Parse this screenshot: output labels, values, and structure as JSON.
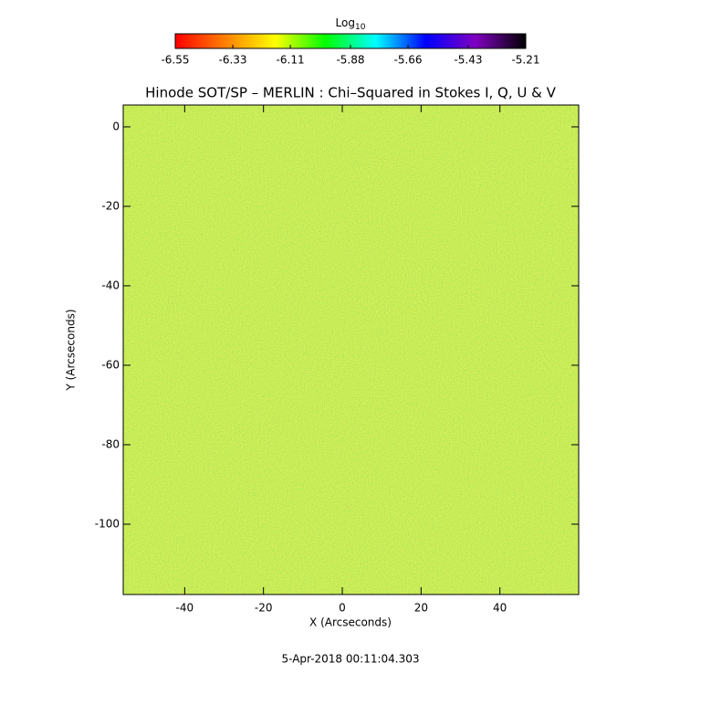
{
  "chart_data": {
    "type": "heatmap",
    "title": "Hinode SOT/SP – MERLIN : Chi–Squared in Stokes I, Q, U & V",
    "x_label": "X (Arcseconds)",
    "y_label": "Y (Arcseconds)",
    "xlim": [
      -55.6,
      60
    ],
    "ylim": [
      -117.7,
      5.5
    ],
    "xticks": [
      -40,
      -20,
      0,
      20,
      40
    ],
    "yticks": [
      0,
      -20,
      -40,
      -60,
      -80,
      -100
    ],
    "colorbar": {
      "label": "Log",
      "label_subscript": "10",
      "lim": [
        -6.55,
        -5.21
      ],
      "ticks": [
        -6.55,
        -6.33,
        -6.11,
        -5.88,
        -5.66,
        -5.43,
        -5.21
      ],
      "colors": [
        "#ff0000",
        "#ff8000",
        "#ffff00",
        "#00ff00",
        "#00ffff",
        "#0000ff",
        "#8000c0",
        "#000000"
      ]
    },
    "footer": "5-Apr-2018 00:11:04.303"
  }
}
